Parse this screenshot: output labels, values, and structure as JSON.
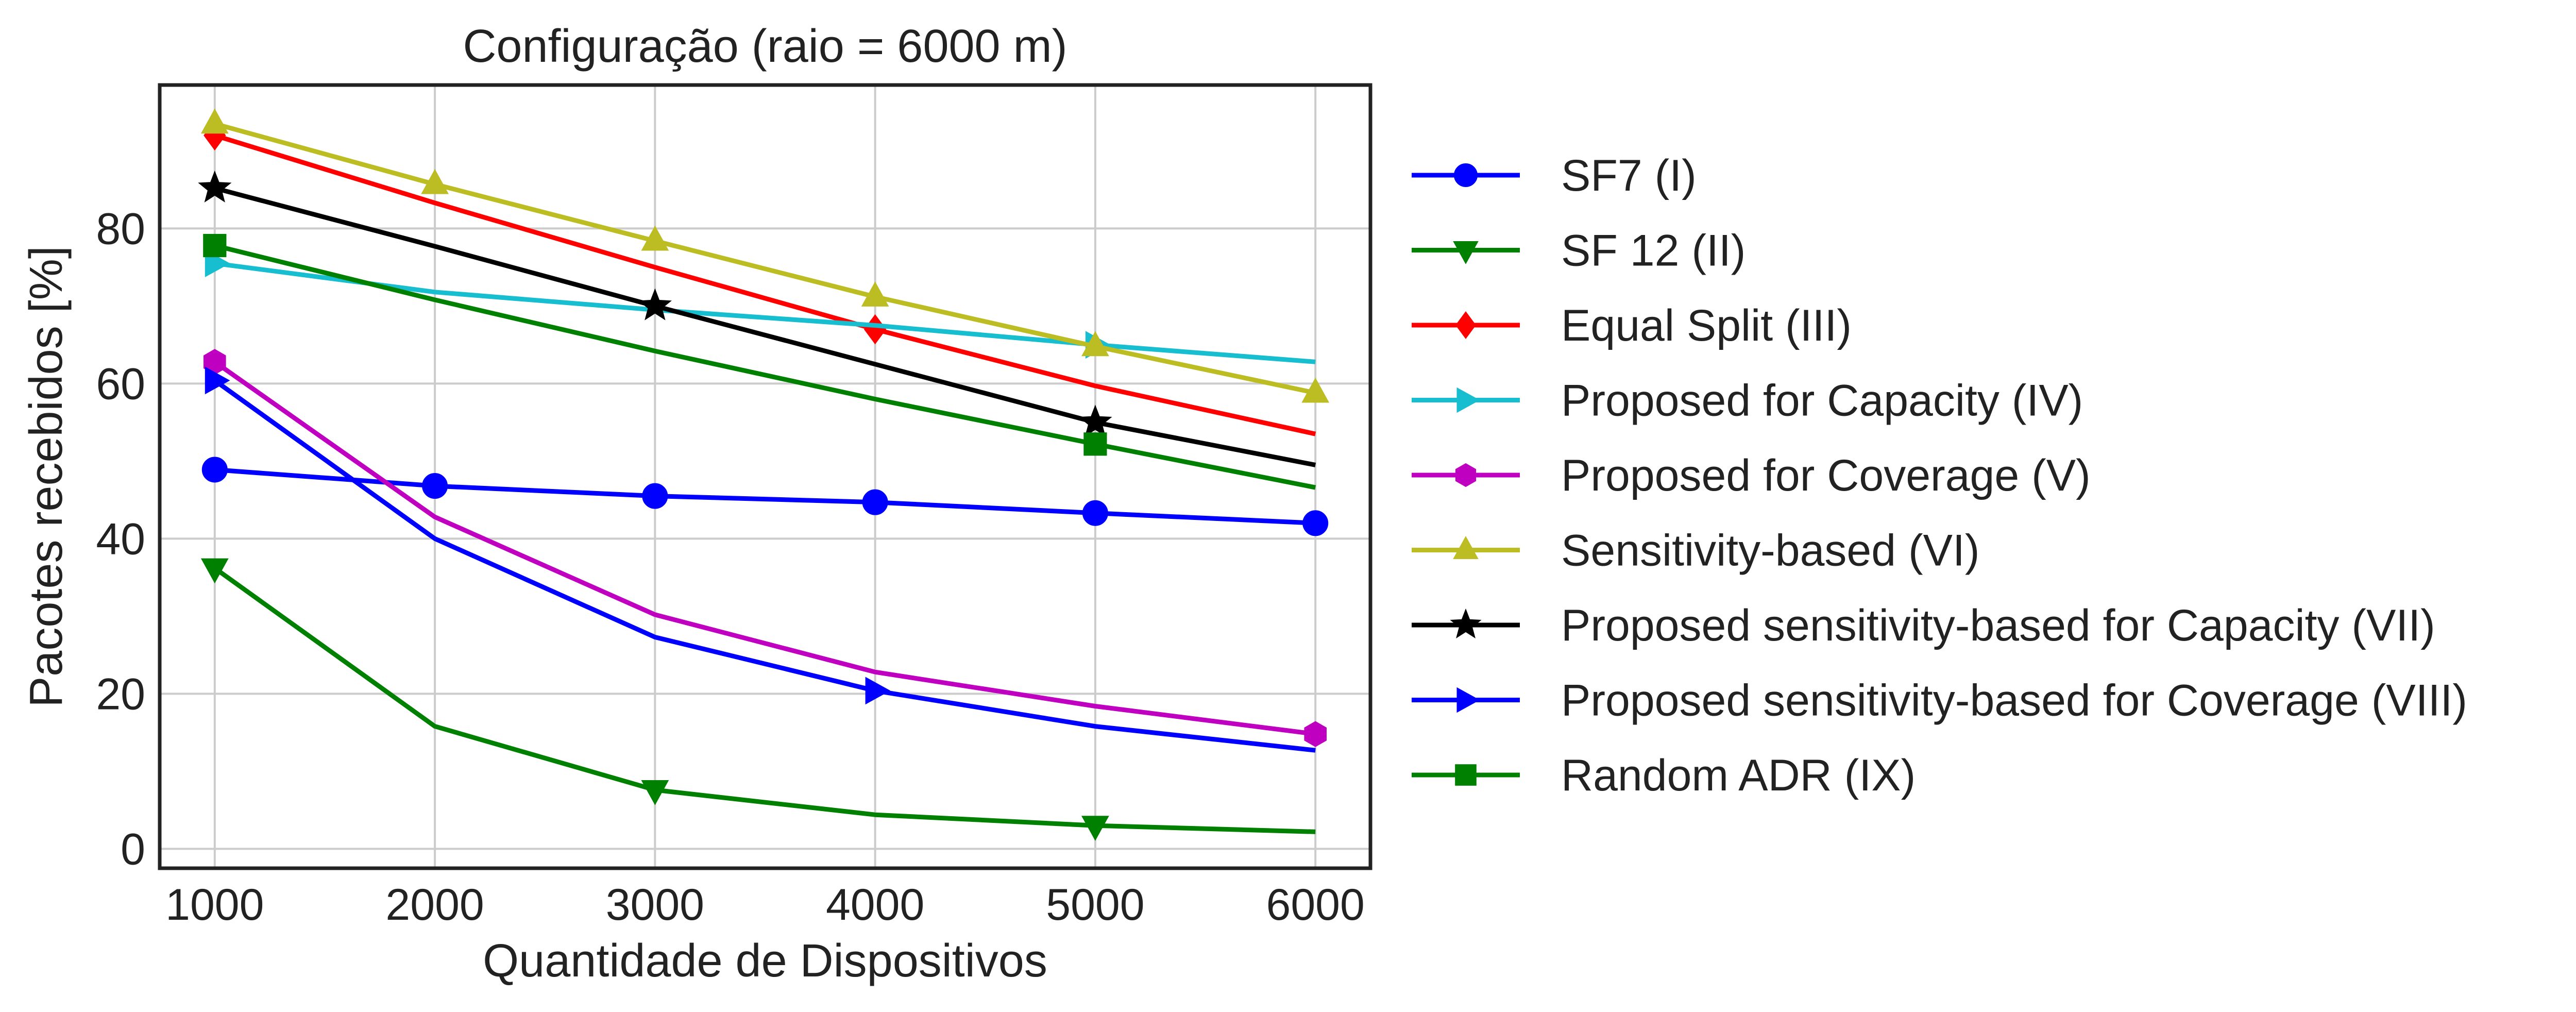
{
  "chart_data": {
    "type": "line",
    "title": "Configuração (raio = 6000 m)",
    "xlabel": "Quantidade de Dispositivos",
    "ylabel": "Pacotes recebidos [%]",
    "x": [
      1000,
      2000,
      3000,
      4000,
      5000,
      6000
    ],
    "x_ticks": [
      1000,
      2000,
      3000,
      4000,
      5000,
      6000
    ],
    "y_ticks": [
      0,
      20,
      40,
      60,
      80
    ],
    "xlim": [
      750,
      6250
    ],
    "ylim": [
      -2.5,
      98.5
    ],
    "grid": true,
    "legend_position": "outside-right",
    "series": [
      {
        "name": "SF7 (I)",
        "color": "#0000ff",
        "marker": "circle",
        "marker_every": [
          0,
          1,
          2,
          3,
          4,
          5
        ],
        "values": [
          48.9,
          46.8,
          45.5,
          44.7,
          43.3,
          42.0
        ]
      },
      {
        "name": "SF 12 (II)",
        "color": "#008000",
        "marker": "triangle-down",
        "marker_every": [
          0,
          2,
          4
        ],
        "values": [
          36.2,
          15.8,
          7.6,
          4.4,
          3.0,
          2.2
        ]
      },
      {
        "name": "Equal Split (III)",
        "color": "#ff0000",
        "marker": "diamond",
        "marker_every": [
          0,
          3
        ],
        "values": [
          92.0,
          83.3,
          75.0,
          67.0,
          59.7,
          53.5
        ]
      },
      {
        "name": "Proposed for Capacity (IV)",
        "color": "#17becf",
        "marker": "triangle-right",
        "marker_every": [
          0,
          4
        ],
        "values": [
          75.5,
          71.8,
          69.5,
          67.5,
          65.0,
          62.8
        ]
      },
      {
        "name": "Proposed for Coverage (V)",
        "color": "#c000c0",
        "marker": "hexagon",
        "marker_every": [
          0,
          5
        ],
        "values": [
          62.8,
          42.8,
          30.2,
          22.8,
          18.4,
          14.8
        ]
      },
      {
        "name": "Sensitivity-based (VI)",
        "color": "#bcbd22",
        "marker": "triangle-up",
        "marker_every": [
          0,
          1,
          2,
          3,
          4,
          5
        ],
        "values": [
          93.5,
          85.7,
          78.4,
          71.2,
          64.8,
          58.8
        ]
      },
      {
        "name": "Proposed sensitivity-based for Capacity (VII)",
        "color": "#000000",
        "marker": "star",
        "marker_every": [
          0,
          2,
          4
        ],
        "values": [
          85.2,
          77.7,
          70.0,
          62.5,
          55.0,
          49.5
        ]
      },
      {
        "name": "Proposed sensitivity-based for Coverage (VIII)",
        "color": "#0000ff",
        "marker": "triangle-right",
        "marker_every": [
          0,
          3
        ],
        "values": [
          60.4,
          40.0,
          27.3,
          20.4,
          15.8,
          12.7
        ]
      },
      {
        "name": "Random ADR (IX)",
        "color": "#008000",
        "marker": "square",
        "marker_every": [
          0,
          4
        ],
        "values": [
          77.8,
          70.8,
          64.2,
          58.0,
          52.2,
          46.6
        ]
      }
    ]
  }
}
